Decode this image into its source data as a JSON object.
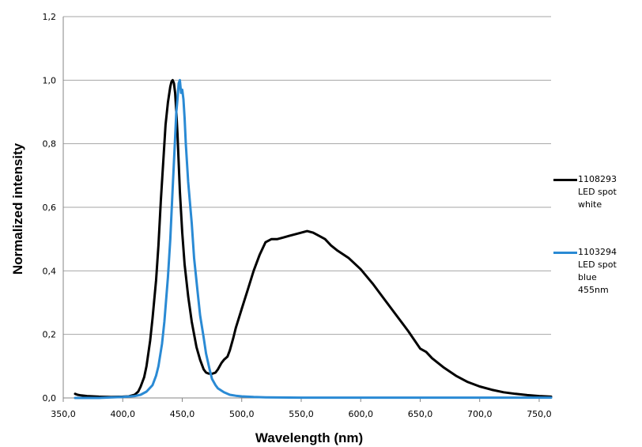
{
  "chart_data": {
    "type": "line",
    "xlabel": "Wavelength (nm)",
    "ylabel": "Normalized intensity",
    "xlim": [
      350,
      760
    ],
    "ylim": [
      0,
      1.2
    ],
    "x_ticks": [
      "350,0",
      "400,0",
      "450,0",
      "500,0",
      "550,0",
      "600,0",
      "650,0",
      "700,0",
      "750,0"
    ],
    "y_ticks": [
      "0,0",
      "0,2",
      "0,4",
      "0,6",
      "0,8",
      "1,0",
      "1,2"
    ],
    "grid": "horizontal",
    "legend_position": "right",
    "series": [
      {
        "name": "1108293 LED spot white",
        "color": "#000000",
        "x": [
          360,
          362,
          365,
          370,
          380,
          390,
          400,
          405,
          410,
          413,
          415,
          418,
          420,
          423,
          425,
          428,
          430,
          432,
          434,
          436,
          438,
          440,
          441,
          442,
          443,
          444,
          445,
          446,
          447,
          448,
          450,
          452,
          455,
          458,
          460,
          462,
          465,
          468,
          470,
          472,
          475,
          478,
          480,
          483,
          485,
          488,
          490,
          493,
          495,
          500,
          505,
          510,
          515,
          520,
          525,
          530,
          535,
          540,
          545,
          550,
          555,
          560,
          565,
          570,
          575,
          580,
          590,
          600,
          610,
          620,
          630,
          640,
          650,
          655,
          660,
          670,
          680,
          690,
          700,
          710,
          720,
          730,
          740,
          750,
          760
        ],
        "y": [
          0.013,
          0.01,
          0.008,
          0.006,
          0.004,
          0.003,
          0.004,
          0.005,
          0.01,
          0.02,
          0.035,
          0.065,
          0.1,
          0.18,
          0.25,
          0.37,
          0.48,
          0.62,
          0.74,
          0.86,
          0.93,
          0.98,
          0.995,
          1.0,
          0.99,
          0.96,
          0.9,
          0.83,
          0.74,
          0.65,
          0.52,
          0.42,
          0.32,
          0.24,
          0.2,
          0.16,
          0.12,
          0.09,
          0.08,
          0.077,
          0.076,
          0.08,
          0.09,
          0.11,
          0.12,
          0.13,
          0.15,
          0.19,
          0.22,
          0.28,
          0.34,
          0.4,
          0.45,
          0.49,
          0.5,
          0.5,
          0.505,
          0.51,
          0.515,
          0.52,
          0.525,
          0.52,
          0.51,
          0.5,
          0.48,
          0.465,
          0.44,
          0.405,
          0.36,
          0.31,
          0.26,
          0.21,
          0.155,
          0.145,
          0.125,
          0.095,
          0.07,
          0.05,
          0.036,
          0.026,
          0.018,
          0.013,
          0.009,
          0.006,
          0.004
        ]
      },
      {
        "name": "1103294 LED spot blue 455nm",
        "color": "#2a8ad4",
        "x": [
          360,
          380,
          400,
          410,
          415,
          420,
          425,
          428,
          430,
          433,
          435,
          438,
          440,
          442,
          444,
          445,
          446,
          447,
          448,
          449,
          450,
          451,
          452,
          453,
          455,
          458,
          460,
          463,
          465,
          468,
          470,
          473,
          475,
          478,
          480,
          485,
          490,
          495,
          500,
          510,
          520,
          550,
          600,
          650,
          700,
          760
        ],
        "y": [
          0.0,
          0.0,
          0.003,
          0.006,
          0.01,
          0.02,
          0.04,
          0.07,
          0.1,
          0.17,
          0.24,
          0.38,
          0.5,
          0.66,
          0.82,
          0.9,
          0.94,
          0.99,
          1.0,
          0.96,
          0.97,
          0.94,
          0.88,
          0.8,
          0.68,
          0.55,
          0.44,
          0.33,
          0.26,
          0.19,
          0.14,
          0.09,
          0.06,
          0.04,
          0.03,
          0.018,
          0.01,
          0.007,
          0.005,
          0.003,
          0.002,
          0.001,
          0.001,
          0.001,
          0.001,
          0.001
        ]
      }
    ]
  }
}
